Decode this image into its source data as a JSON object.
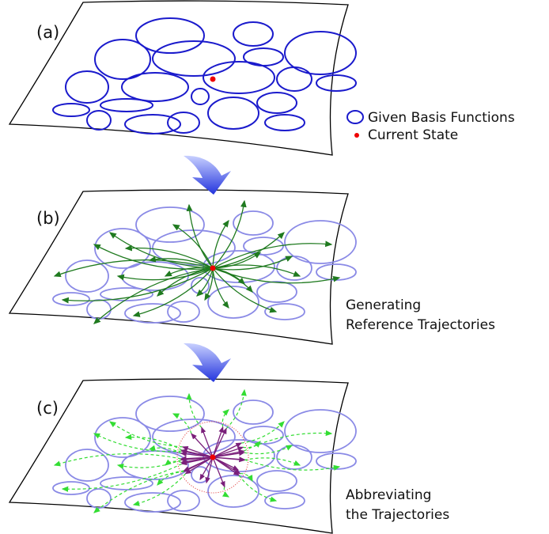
{
  "panels": [
    {
      "label": "(a)"
    },
    {
      "label": "(b)"
    },
    {
      "label": "(c)"
    }
  ],
  "legend": [
    {
      "label": "Given Basis Functions"
    },
    {
      "label": "Current State"
    }
  ],
  "captions": [
    {
      "lines": [
        "Generating",
        "Reference Trajectories"
      ]
    },
    {
      "lines": [
        "Abbreviating",
        "the Trajectories"
      ]
    }
  ]
}
